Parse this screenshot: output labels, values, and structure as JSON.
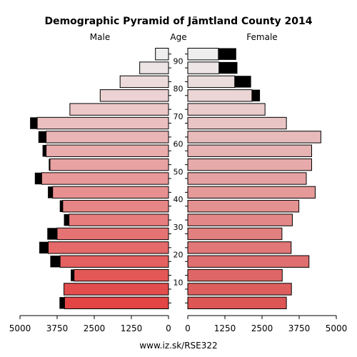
{
  "chart_data": {
    "type": "bar",
    "orientation": "horizontal-pyramid",
    "title": "Demographic Pyramid of Jämtland County 2014",
    "left_label": "Male",
    "center_label": "Age",
    "right_label": "Female",
    "footer": "www.iz.sk/RSE322",
    "age_groups": [
      "0-4",
      "5-9",
      "10-14",
      "15-19",
      "20-24",
      "25-29",
      "30-34",
      "35-39",
      "40-44",
      "45-49",
      "50-54",
      "55-59",
      "60-64",
      "65-69",
      "70-74",
      "75-79",
      "80-84",
      "85-89",
      "90+"
    ],
    "age_tick_labels": [
      "10",
      "20",
      "30",
      "40",
      "50",
      "60",
      "70",
      "80",
      "90"
    ],
    "age_tick_groups": [
      2,
      4,
      6,
      8,
      10,
      12,
      14,
      16,
      18
    ],
    "x_ticks": [
      5000,
      3750,
      2500,
      1250,
      0
    ],
    "x_tick_labels_left": [
      "5000",
      "3750",
      "2500",
      "1250",
      "0"
    ],
    "x_tick_labels_right": [
      "0",
      "1250",
      "2500",
      "3750",
      "5000"
    ],
    "xlim": [
      0,
      5000
    ],
    "series": [
      {
        "name": "Male",
        "values": [
          3500,
          3520,
          3180,
          3650,
          4050,
          3750,
          3350,
          3560,
          3900,
          4270,
          3990,
          4120,
          4120,
          4420,
          3320,
          2300,
          1630,
          970,
          440
        ],
        "surplus": [
          170,
          0,
          110,
          330,
          300,
          330,
          170,
          100,
          160,
          230,
          40,
          120,
          260,
          240,
          0,
          0,
          0,
          0,
          0
        ]
      },
      {
        "name": "Female",
        "values": [
          3320,
          3490,
          3180,
          4080,
          3480,
          3170,
          3520,
          3740,
          4290,
          3990,
          4170,
          4170,
          4480,
          3320,
          2600,
          2160,
          1580,
          1050,
          1030
        ],
        "surplus": [
          0,
          0,
          0,
          0,
          0,
          0,
          0,
          0,
          0,
          0,
          0,
          0,
          0,
          0,
          0,
          270,
          550,
          620,
          600
        ]
      }
    ],
    "colors": {
      "background": "#ffffff",
      "surplus": "#000000",
      "outline": "#000000",
      "bar_light": "#eeeeee",
      "male_base": "#e34444",
      "female_base": "#dd5555"
    }
  }
}
